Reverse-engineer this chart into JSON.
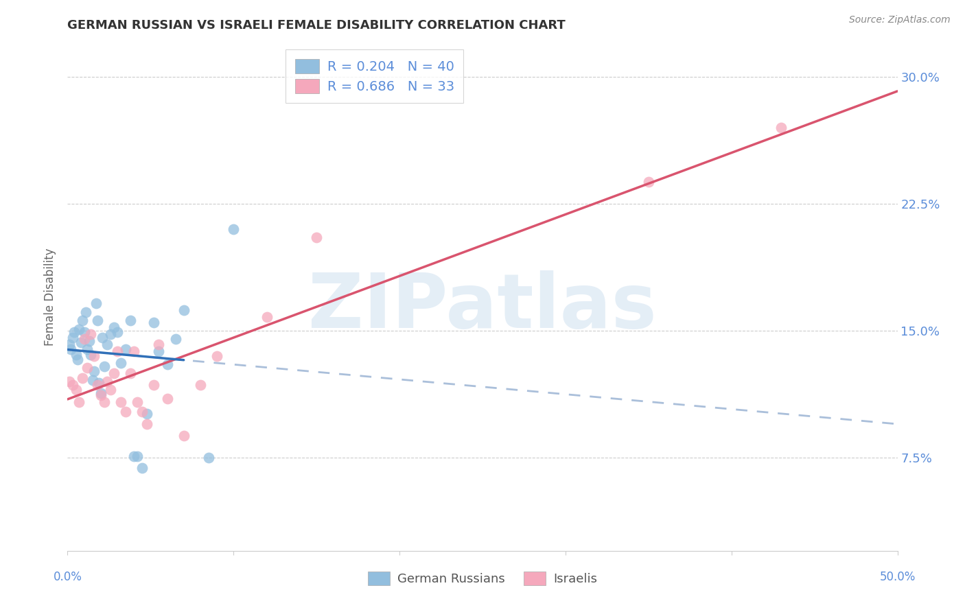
{
  "title": "GERMAN RUSSIAN VS ISRAELI FEMALE DISABILITY CORRELATION CHART",
  "source": "Source: ZipAtlas.com",
  "ylabel": "Female Disability",
  "watermark": "ZIPatlas",
  "x_min": 0.0,
  "x_max": 0.5,
  "y_min": 0.02,
  "y_max": 0.32,
  "yticks": [
    0.075,
    0.15,
    0.225,
    0.3
  ],
  "ytick_labels": [
    "7.5%",
    "15.0%",
    "22.5%",
    "30.0%"
  ],
  "xtick_labels": [
    "0.0%",
    "50.0%"
  ],
  "legend1_R": "0.204",
  "legend1_N": "40",
  "legend2_R": "0.686",
  "legend2_N": "33",
  "legend1_label": "German Russians",
  "legend2_label": "Israelis",
  "blue_scatter_color": "#92bede",
  "pink_scatter_color": "#f5a8bc",
  "blue_line_color": "#3070b8",
  "pink_line_color": "#d9546e",
  "dashed_line_color": "#aabfda",
  "axis_label_color": "#5b8dd9",
  "grid_color": "#cccccc",
  "german_russian_x": [
    0.001,
    0.002,
    0.003,
    0.004,
    0.005,
    0.006,
    0.007,
    0.008,
    0.009,
    0.01,
    0.011,
    0.012,
    0.013,
    0.014,
    0.015,
    0.016,
    0.017,
    0.018,
    0.019,
    0.02,
    0.021,
    0.022,
    0.024,
    0.026,
    0.028,
    0.03,
    0.032,
    0.035,
    0.038,
    0.04,
    0.042,
    0.045,
    0.048,
    0.052,
    0.055,
    0.06,
    0.065,
    0.07,
    0.085,
    0.1
  ],
  "german_russian_y": [
    0.142,
    0.139,
    0.146,
    0.149,
    0.136,
    0.133,
    0.151,
    0.143,
    0.156,
    0.149,
    0.161,
    0.139,
    0.144,
    0.136,
    0.121,
    0.126,
    0.166,
    0.156,
    0.119,
    0.113,
    0.146,
    0.129,
    0.142,
    0.148,
    0.152,
    0.149,
    0.131,
    0.139,
    0.156,
    0.076,
    0.076,
    0.069,
    0.101,
    0.155,
    0.138,
    0.13,
    0.145,
    0.162,
    0.075,
    0.21
  ],
  "israeli_x": [
    0.001,
    0.003,
    0.005,
    0.007,
    0.009,
    0.01,
    0.012,
    0.014,
    0.016,
    0.018,
    0.02,
    0.022,
    0.024,
    0.026,
    0.028,
    0.03,
    0.032,
    0.035,
    0.038,
    0.04,
    0.042,
    0.045,
    0.048,
    0.052,
    0.055,
    0.06,
    0.07,
    0.08,
    0.09,
    0.12,
    0.15,
    0.35,
    0.43
  ],
  "israeli_y": [
    0.12,
    0.118,
    0.115,
    0.108,
    0.122,
    0.145,
    0.128,
    0.148,
    0.135,
    0.118,
    0.112,
    0.108,
    0.12,
    0.115,
    0.125,
    0.138,
    0.108,
    0.102,
    0.125,
    0.138,
    0.108,
    0.102,
    0.095,
    0.118,
    0.142,
    0.11,
    0.088,
    0.118,
    0.135,
    0.158,
    0.205,
    0.238,
    0.27
  ],
  "blue_line_x_start": 0.0,
  "blue_line_x_end": 0.07,
  "pink_line_x_start": 0.0,
  "pink_line_x_end": 0.5
}
